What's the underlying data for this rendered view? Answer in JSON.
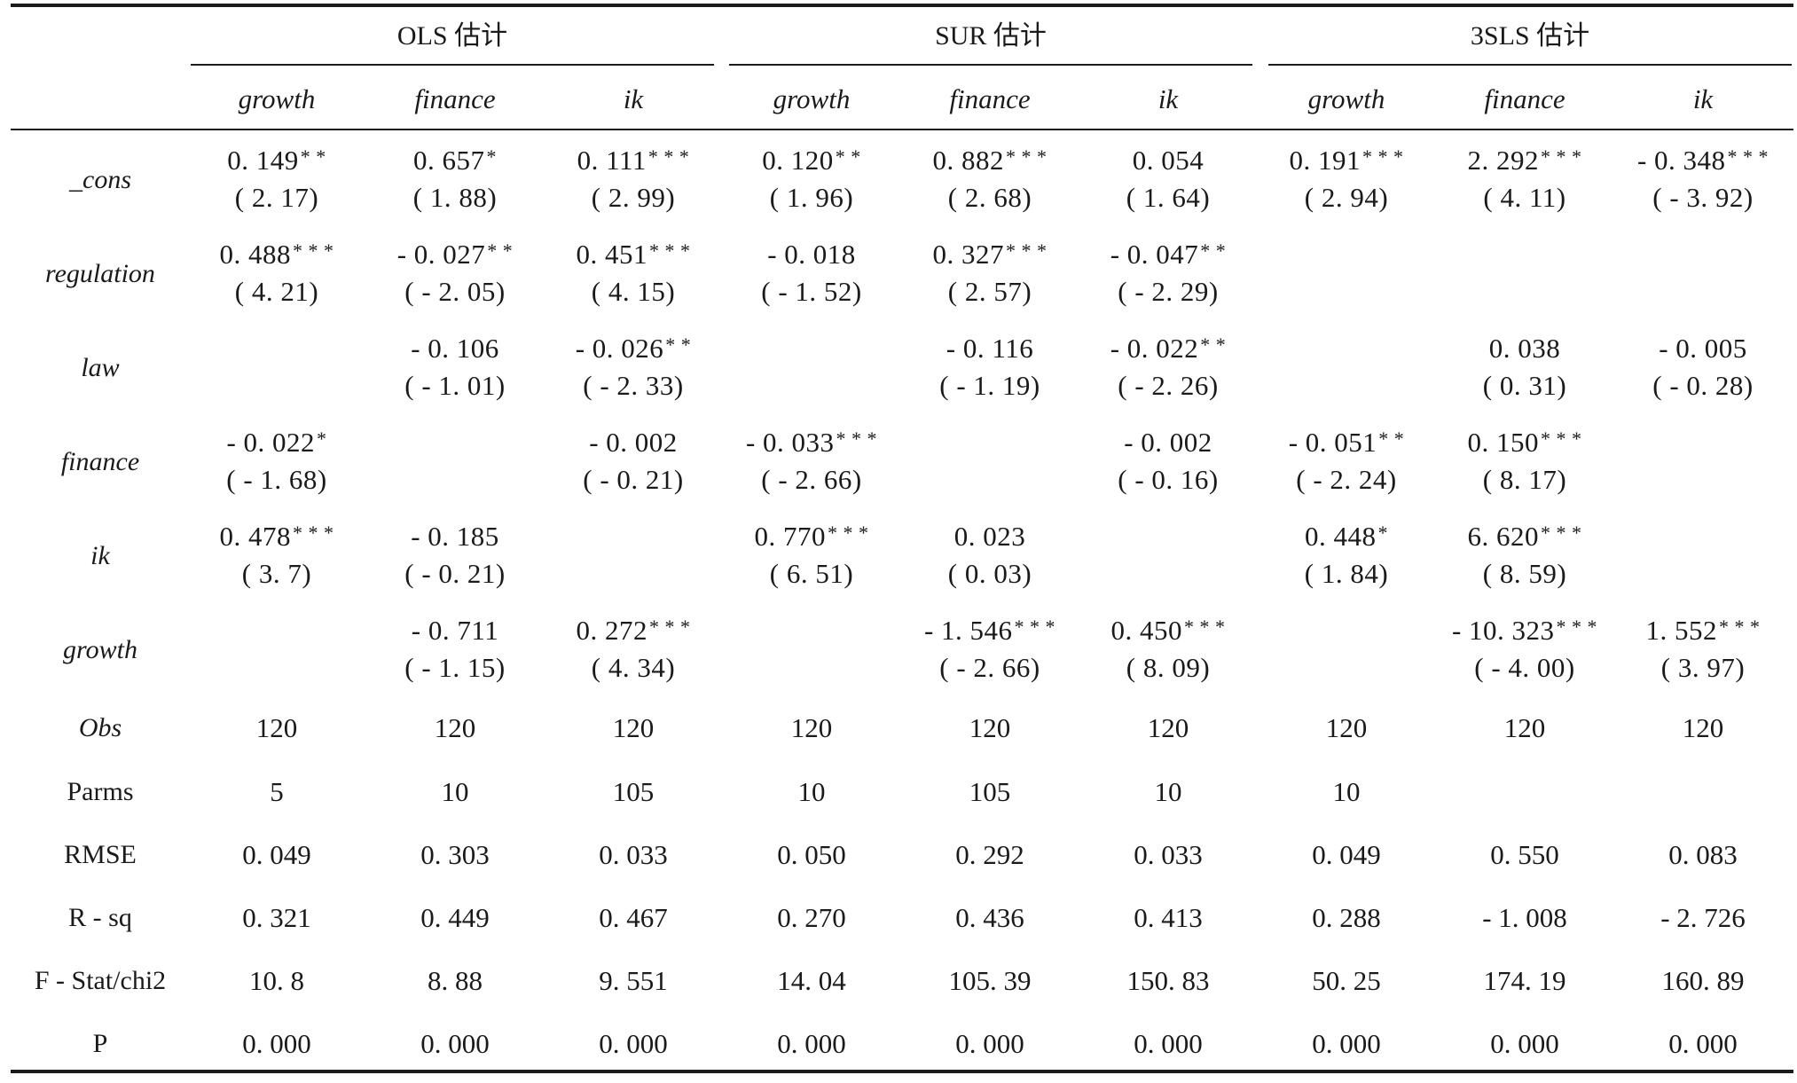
{
  "groups": [
    {
      "title": "OLS 估计"
    },
    {
      "title": "SUR 估计"
    },
    {
      "title": "3SLS 估计"
    }
  ],
  "columns": [
    "growth",
    "finance",
    "ik",
    "growth",
    "finance",
    "ik",
    "growth",
    "finance",
    "ik"
  ],
  "coef_rows": [
    {
      "label": "_cons",
      "cells": [
        {
          "coef": "0. 149",
          "stars": "* *",
          "t": "( 2. 17)"
        },
        {
          "coef": "0. 657",
          "stars": "*",
          "t": "( 1. 88)"
        },
        {
          "coef": "0. 111",
          "stars": "* * *",
          "t": "( 2. 99)"
        },
        {
          "coef": "0. 120",
          "stars": "* *",
          "t": "( 1. 96)"
        },
        {
          "coef": "0. 882",
          "stars": "* * *",
          "t": "( 2. 68)"
        },
        {
          "coef": "0. 054",
          "stars": "",
          "t": "( 1. 64)"
        },
        {
          "coef": "0. 191",
          "stars": "* * *",
          "t": "( 2. 94)"
        },
        {
          "coef": "2. 292",
          "stars": "* * *",
          "t": "( 4. 11)"
        },
        {
          "coef": "- 0. 348",
          "stars": "* * *",
          "t": "( - 3. 92)"
        }
      ]
    },
    {
      "label": "regulation",
      "cells": [
        {
          "coef": "0. 488",
          "stars": "* * *",
          "t": "( 4. 21)"
        },
        {
          "coef": "- 0. 027",
          "stars": "* *",
          "t": "( - 2. 05)"
        },
        {
          "coef": "0. 451",
          "stars": "* * *",
          "t": "( 4. 15)"
        },
        {
          "coef": "- 0. 018",
          "stars": "",
          "t": "( - 1. 52)"
        },
        {
          "coef": "0. 327",
          "stars": "* * *",
          "t": "( 2. 57)"
        },
        {
          "coef": "- 0. 047",
          "stars": "* *",
          "t": "( - 2. 29)"
        },
        null,
        null,
        null
      ]
    },
    {
      "label": "law",
      "cells": [
        null,
        {
          "coef": "- 0. 106",
          "stars": "",
          "t": "( - 1. 01)"
        },
        {
          "coef": "- 0. 026",
          "stars": "* *",
          "t": "( - 2. 33)"
        },
        null,
        {
          "coef": "- 0. 116",
          "stars": "",
          "t": "( - 1. 19)"
        },
        {
          "coef": "- 0. 022",
          "stars": "* *",
          "t": "( - 2. 26)"
        },
        null,
        {
          "coef": "0. 038",
          "stars": "",
          "t": "( 0. 31)"
        },
        {
          "coef": "- 0. 005",
          "stars": "",
          "t": "( - 0. 28)"
        }
      ]
    },
    {
      "label": "finance",
      "cells": [
        {
          "coef": "- 0. 022",
          "stars": "*",
          "t": "( - 1. 68)"
        },
        null,
        {
          "coef": "- 0. 002",
          "stars": "",
          "t": "( - 0. 21)"
        },
        {
          "coef": "- 0. 033",
          "stars": "* * *",
          "t": "( - 2. 66)"
        },
        null,
        {
          "coef": "- 0. 002",
          "stars": "",
          "t": "( - 0. 16)"
        },
        {
          "coef": "- 0. 051",
          "stars": "* *",
          "t": "( - 2. 24)"
        },
        {
          "coef": "0. 150",
          "stars": "* * *",
          "t": "( 8. 17)"
        },
        null
      ]
    },
    {
      "label": "ik",
      "cells": [
        {
          "coef": "0. 478",
          "stars": "* * *",
          "t": "( 3. 7)"
        },
        {
          "coef": "- 0. 185",
          "stars": "",
          "t": "( - 0. 21)"
        },
        null,
        {
          "coef": "0. 770",
          "stars": "* * *",
          "t": "( 6. 51)"
        },
        {
          "coef": "0. 023",
          "stars": "",
          "t": "( 0. 03)"
        },
        null,
        {
          "coef": "0. 448",
          "stars": "*",
          "t": "( 1. 84)"
        },
        {
          "coef": "6. 620",
          "stars": "* * *",
          "t": "( 8. 59)"
        },
        null
      ]
    },
    {
      "label": "growth",
      "cells": [
        null,
        {
          "coef": "- 0. 711",
          "stars": "",
          "t": "( - 1. 15)"
        },
        {
          "coef": "0. 272",
          "stars": "* * *",
          "t": "( 4. 34)"
        },
        null,
        {
          "coef": "- 1. 546",
          "stars": "* * *",
          "t": "( - 2. 66)"
        },
        {
          "coef": "0. 450",
          "stars": "* * *",
          "t": "( 8. 09)"
        },
        null,
        {
          "coef": "- 10. 323",
          "stars": "* * *",
          "t": "( - 4. 00)"
        },
        {
          "coef": "1. 552",
          "stars": "* * *",
          "t": "( 3. 97)"
        }
      ]
    }
  ],
  "stat_rows": [
    {
      "label": "Obs",
      "italic": true,
      "values": [
        "120",
        "120",
        "120",
        "120",
        "120",
        "120",
        "120",
        "120",
        "120"
      ]
    },
    {
      "label": "Parms",
      "italic": false,
      "values": [
        "5",
        "10",
        "105",
        "10",
        "105",
        "10",
        "10",
        "",
        ""
      ]
    },
    {
      "label": "RMSE",
      "italic": false,
      "values": [
        "0. 049",
        "0. 303",
        "0. 033",
        "0. 050",
        "0. 292",
        "0. 033",
        "0. 049",
        "0. 550",
        "0. 083"
      ]
    },
    {
      "label": "R - sq",
      "italic": false,
      "values": [
        "0. 321",
        "0. 449",
        "0. 467",
        "0. 270",
        "0. 436",
        "0. 413",
        "0. 288",
        "- 1. 008",
        "- 2. 726"
      ]
    },
    {
      "label": "F - Stat/chi2",
      "italic": false,
      "values": [
        "10. 8",
        "8. 88",
        "9. 551",
        "14. 04",
        "105. 39",
        "150. 83",
        "50. 25",
        "174. 19",
        "160. 89"
      ]
    },
    {
      "label": "P",
      "italic": false,
      "values": [
        "0. 000",
        "0. 000",
        "0. 000",
        "0. 000",
        "0. 000",
        "0. 000",
        "0. 000",
        "0. 000",
        "0. 000"
      ]
    }
  ]
}
